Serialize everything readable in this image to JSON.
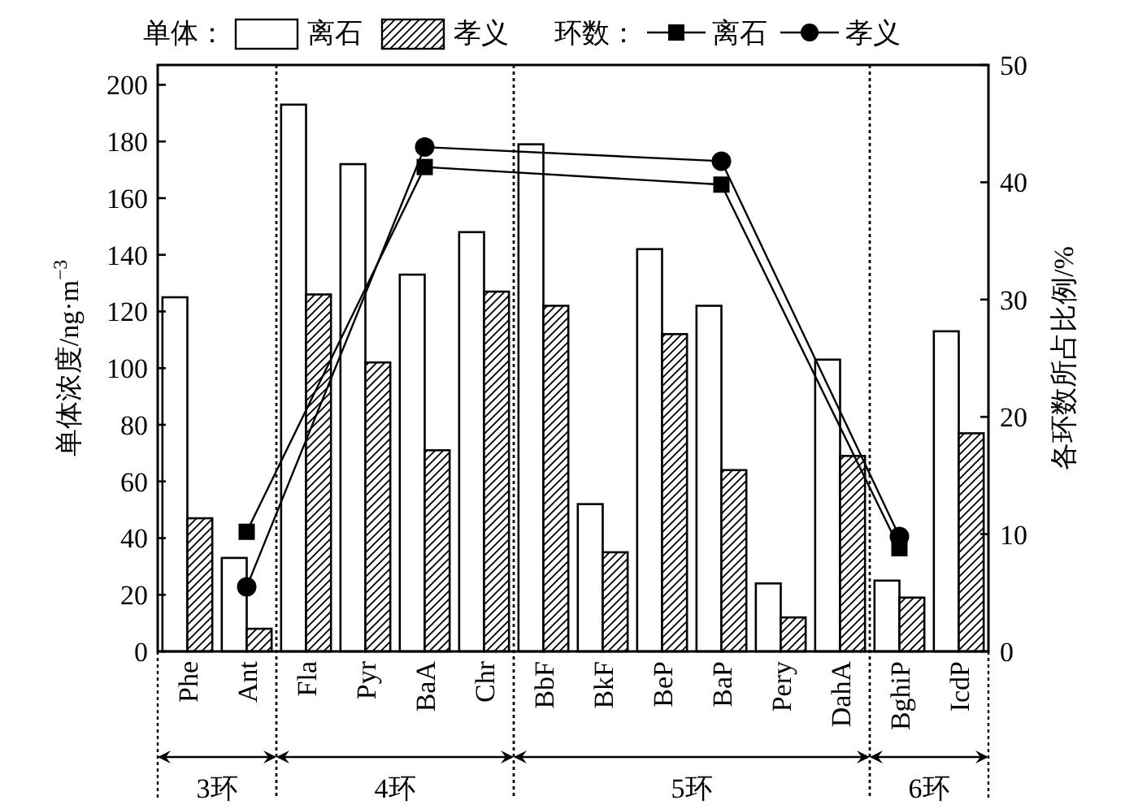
{
  "chart_data": {
    "type": "bar",
    "categories": [
      "Phe",
      "Ant",
      "Fla",
      "Pyr",
      "BaA",
      "Chr",
      "BbF",
      "BkF",
      "BeP",
      "BaP",
      "Pery",
      "DahA",
      "BghiP",
      "IcdP"
    ],
    "series": [
      {
        "name": "离石",
        "color": "#ffffff",
        "values": [
          125,
          33,
          193,
          172,
          133,
          148,
          179,
          52,
          142,
          122,
          24,
          103,
          25,
          113
        ]
      },
      {
        "name": "孝义",
        "color": "#000000",
        "values": [
          47,
          8,
          126,
          102,
          71,
          127,
          122,
          35,
          112,
          64,
          12,
          69,
          19,
          77
        ]
      },
      {
        "name": "离石",
        "type": "line",
        "axis": "y2",
        "color": "#000000",
        "marker": "square",
        "values": [
          null,
          10.2,
          null,
          null,
          41.3,
          null,
          null,
          null,
          null,
          39.8,
          null,
          null,
          8.8,
          null
        ]
      },
      {
        "name": "孝义",
        "type": "line",
        "axis": "y2",
        "color": "#000000",
        "marker": "circle",
        "values": [
          null,
          5.5,
          null,
          null,
          43.0,
          null,
          null,
          null,
          null,
          41.8,
          null,
          null,
          9.8,
          null
        ]
      }
    ],
    "ylabel": "单体浓度/ng·m$^{−3}$",
    "y2label": "各环数所占比例/%",
    "ylim": [
      0,
      207
    ],
    "yticks": [
      0,
      20,
      40,
      60,
      80,
      100,
      120,
      140,
      160,
      180,
      200
    ],
    "y2lim": [
      0,
      50
    ],
    "y2ticks": [
      0,
      10,
      20,
      30,
      40,
      50
    ],
    "legend": "top",
    "legend_title": "单体：",
    "annotations": [
      "3环",
      "4环",
      "5环",
      "6环",
      "环数："
    ]
  }
}
